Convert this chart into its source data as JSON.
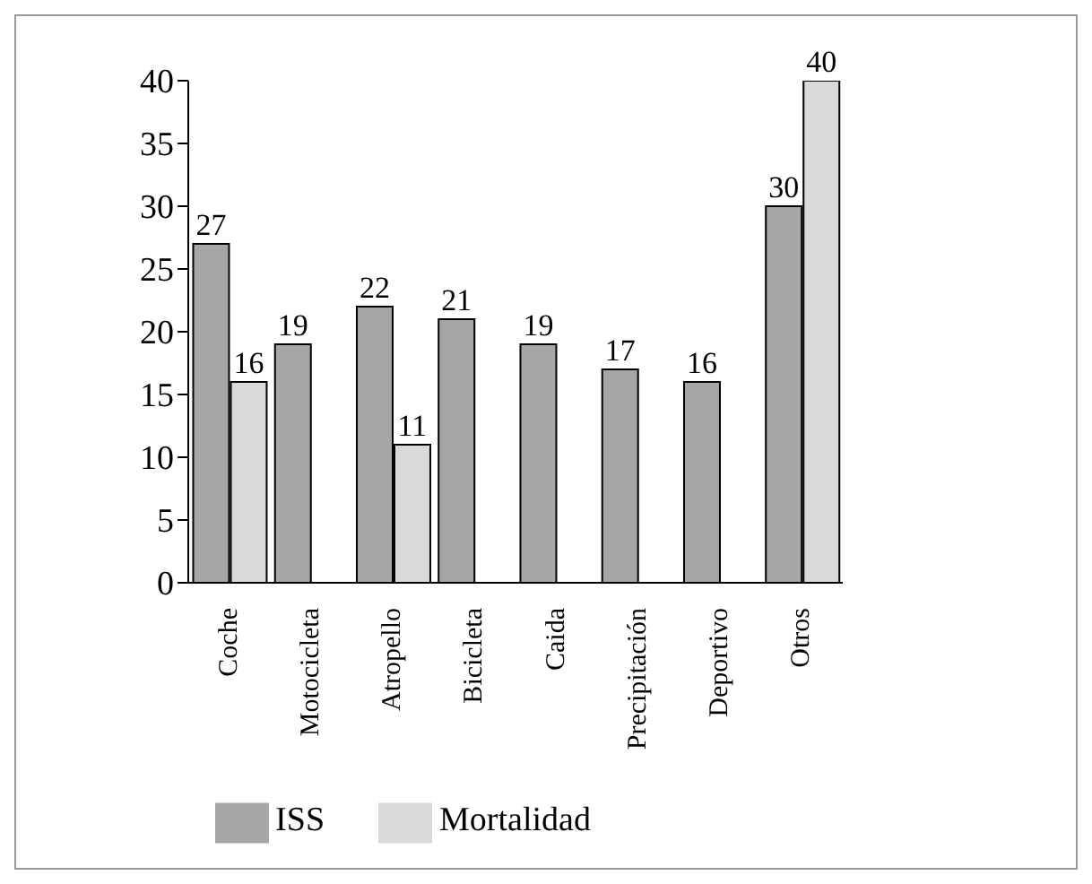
{
  "chart_data": {
    "type": "bar",
    "categories": [
      "Coche",
      "Motocicleta",
      "Atropello",
      "Bicicleta",
      "Caida",
      "Precipitación",
      "Deportivo",
      "Otros"
    ],
    "series": [
      {
        "name": "ISS",
        "color": "#a6a6a6",
        "values": [
          27,
          19,
          22,
          21,
          19,
          17,
          16,
          30
        ]
      },
      {
        "name": "Mortalidad",
        "color": "#d9d9d9",
        "values": [
          16,
          null,
          11,
          null,
          null,
          null,
          null,
          40
        ]
      }
    ],
    "ylim": [
      0,
      40
    ],
    "yticks": [
      0,
      5,
      10,
      15,
      20,
      25,
      30,
      35,
      40
    ],
    "grid": false,
    "legend": "bottom",
    "data_labels": true
  }
}
